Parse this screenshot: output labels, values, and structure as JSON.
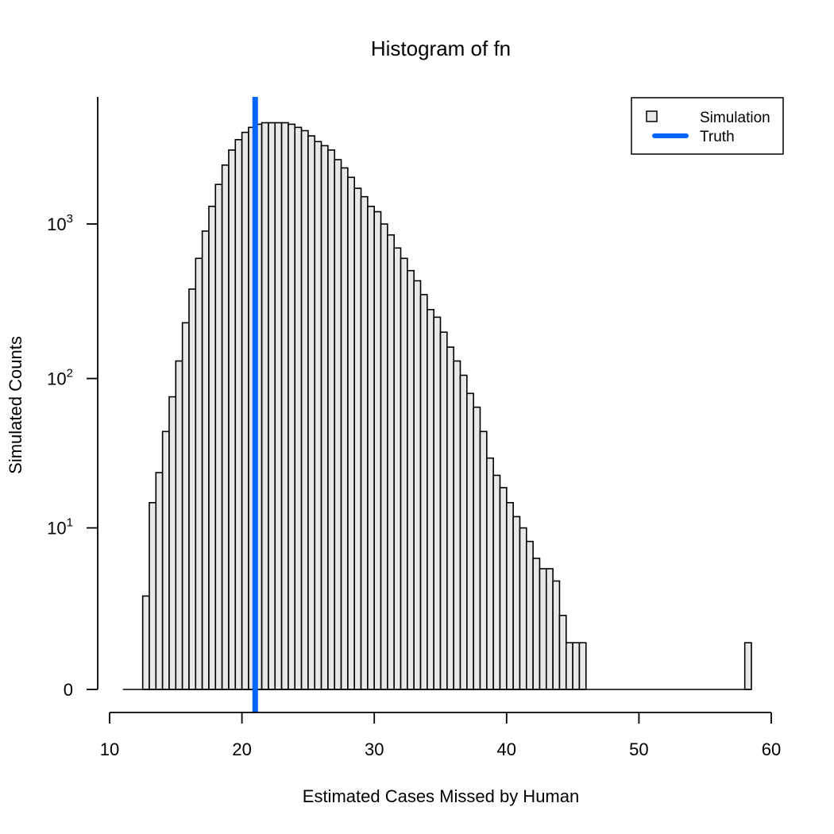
{
  "chart_data": {
    "type": "bar",
    "title": "Histogram of fn",
    "xlabel": "Estimated Cases Missed by Human",
    "ylabel": "Simulated Counts",
    "x_scale": "linear",
    "y_scale": "log10(1 + count)",
    "xlim": [
      10,
      60
    ],
    "x_ticks": [
      "10",
      "20",
      "30",
      "40",
      "50",
      "60"
    ],
    "y_ticks": [
      {
        "value": 0,
        "base": "0",
        "exp": ""
      },
      {
        "value": 10,
        "base": "10",
        "exp": "1"
      },
      {
        "value": 100,
        "base": "10",
        "exp": "2"
      },
      {
        "value": 1000,
        "base": "10",
        "exp": "3"
      }
    ],
    "bin_width": 0.5,
    "bin_start": 11,
    "counts": [
      0,
      0,
      0,
      3,
      15,
      24,
      45,
      76,
      130,
      230,
      380,
      600,
      900,
      1300,
      1800,
      2400,
      3000,
      3500,
      3900,
      4200,
      4400,
      4500,
      4500,
      4500,
      4500,
      4400,
      4200,
      4000,
      3700,
      3400,
      3200,
      3000,
      2600,
      2300,
      2000,
      1700,
      1500,
      1300,
      1200,
      1000,
      850,
      700,
      600,
      500,
      430,
      350,
      280,
      250,
      200,
      160,
      130,
      105,
      80,
      65,
      45,
      30,
      23,
      19,
      15,
      12,
      10,
      8,
      6,
      5,
      5,
      4,
      2,
      1,
      1,
      1,
      0,
      0,
      0,
      0,
      0,
      0,
      0,
      0,
      0,
      0,
      0,
      0,
      0,
      0,
      0,
      0,
      0,
      0,
      0,
      0,
      0,
      0,
      0,
      0,
      1
    ],
    "truth_line": {
      "x": 21,
      "color": "#0066ff"
    },
    "bar_fill": "#e8e8e8",
    "bar_stroke": "#000000",
    "legend": {
      "position": "top-right",
      "entries": [
        {
          "label": "Simulation",
          "kind": "box"
        },
        {
          "label": "Truth",
          "kind": "line"
        }
      ]
    },
    "grid": false
  }
}
